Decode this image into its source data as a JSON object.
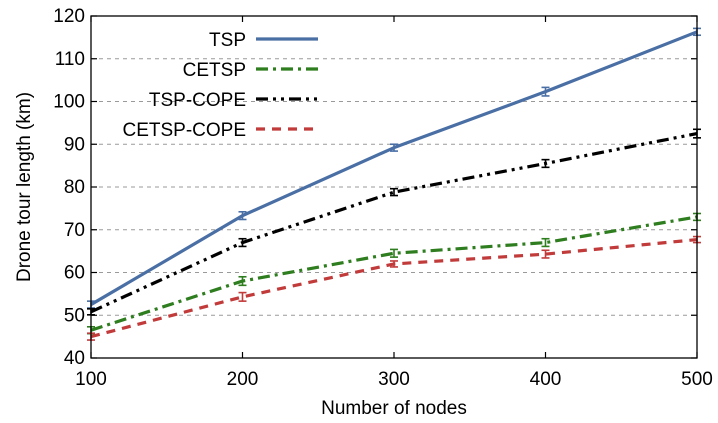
{
  "chart_data": {
    "type": "line",
    "title": "",
    "xlabel": "Number of nodes",
    "ylabel": "Drone tour length (km)",
    "x": [
      100,
      200,
      300,
      400,
      500
    ],
    "xlim": [
      100,
      500
    ],
    "ylim": [
      40,
      120
    ],
    "xticks": [
      "100",
      "200",
      "300",
      "400",
      "500"
    ],
    "yticks": [
      "40",
      "50",
      "60",
      "70",
      "80",
      "90",
      "100",
      "110",
      "120"
    ],
    "grid": "horizontal dashed",
    "legend_position": "top-left",
    "error_bars": true,
    "series": [
      {
        "name": "TSP",
        "values": [
          52.5,
          73.3,
          89.2,
          102.3,
          116.3
        ],
        "error": [
          0.8,
          0.9,
          0.8,
          1.0,
          0.8
        ],
        "color": "#4a6fa5",
        "dash": "solid"
      },
      {
        "name": "CETSP",
        "values": [
          46.5,
          58.0,
          64.5,
          67.0,
          73.0
        ],
        "error": [
          0.8,
          1.0,
          0.9,
          0.9,
          0.8
        ],
        "color": "#2e7d1e",
        "dash": "dashdot"
      },
      {
        "name": "TSP-COPE",
        "values": [
          50.8,
          67.0,
          78.8,
          85.5,
          92.5
        ],
        "error": [
          0.7,
          0.9,
          0.8,
          0.9,
          1.0
        ],
        "color": "#000000",
        "dash": "dashdotdot"
      },
      {
        "name": "CETSP-COPE",
        "values": [
          45.0,
          54.3,
          62.0,
          64.3,
          67.7
        ],
        "error": [
          0.8,
          1.0,
          0.7,
          0.9,
          0.7
        ],
        "color": "#c23b3b",
        "dash": "dashed"
      }
    ]
  }
}
